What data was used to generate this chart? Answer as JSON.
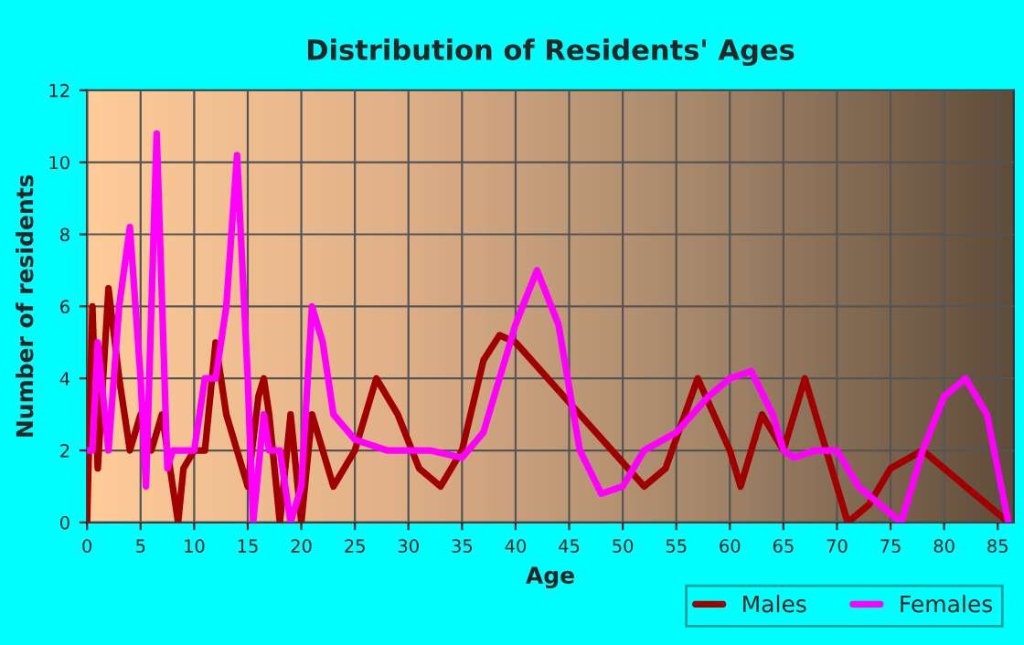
{
  "chart_data": {
    "type": "line",
    "title": "Distribution of Residents' Ages",
    "xlabel": "Age",
    "ylabel": "Number of residents",
    "xlim": [
      0,
      86.5
    ],
    "ylim": [
      0,
      12
    ],
    "xticks": [
      0,
      5,
      10,
      15,
      20,
      25,
      30,
      35,
      40,
      45,
      50,
      55,
      60,
      65,
      70,
      75,
      80,
      85
    ],
    "yticks": [
      0,
      2,
      4,
      6,
      8,
      10,
      12
    ],
    "grid": true,
    "legend": "bottom right",
    "marker": "none",
    "line_style": "solid",
    "series": [
      {
        "name": "Males",
        "color": "#a00000",
        "x": [
          0,
          0.5,
          1,
          2,
          3,
          4,
          5,
          6,
          7,
          8,
          8.5,
          9,
          10,
          11,
          12,
          13,
          14,
          15,
          16,
          16.5,
          17,
          18,
          19,
          20,
          21,
          22,
          23,
          25,
          27,
          29,
          31,
          33,
          35,
          37,
          38.5,
          40,
          43,
          46,
          49,
          52,
          54,
          57,
          60,
          61,
          63,
          65,
          67,
          69,
          71,
          73,
          75,
          78,
          82,
          86
        ],
        "values": [
          0,
          6,
          1.5,
          6.5,
          4,
          2,
          3,
          2,
          3,
          1,
          0,
          1.5,
          2,
          2,
          5,
          3,
          2,
          1,
          3.5,
          4,
          3,
          0,
          3,
          0,
          3,
          2,
          1,
          2,
          4,
          3,
          1.5,
          1,
          2,
          4.5,
          5.2,
          5,
          4,
          3,
          2,
          1,
          1.5,
          4,
          2,
          1,
          3,
          2,
          4,
          2,
          0,
          0.5,
          1.5,
          2,
          1,
          0
        ]
      },
      {
        "name": "Females",
        "color": "#ff00ff",
        "x": [
          0,
          0.5,
          1,
          2,
          3,
          4,
          5,
          5.5,
          6.5,
          7.5,
          8,
          10,
          11,
          12,
          13,
          14,
          15,
          15.5,
          16.5,
          17,
          18,
          19,
          20,
          21,
          22,
          23,
          25,
          28,
          32,
          35,
          37,
          40,
          42,
          44,
          46,
          48,
          50,
          52,
          55,
          58,
          60,
          62,
          64,
          65,
          66,
          68,
          70,
          72,
          74,
          76,
          78,
          80,
          82,
          84,
          86
        ],
        "values": [
          2,
          2,
          5,
          2,
          6,
          8.2,
          4,
          1,
          10.8,
          1.5,
          2,
          2,
          4,
          4,
          6,
          10.2,
          4,
          0,
          3,
          2,
          2,
          0,
          1,
          6,
          5,
          3,
          2.3,
          2,
          2,
          1.8,
          2.5,
          5.5,
          7,
          5.5,
          2,
          0.8,
          1,
          2,
          2.5,
          3.5,
          4,
          4.2,
          3,
          2,
          1.8,
          2,
          2,
          1,
          0.5,
          0,
          2,
          3.5,
          4,
          3,
          0
        ]
      }
    ]
  }
}
